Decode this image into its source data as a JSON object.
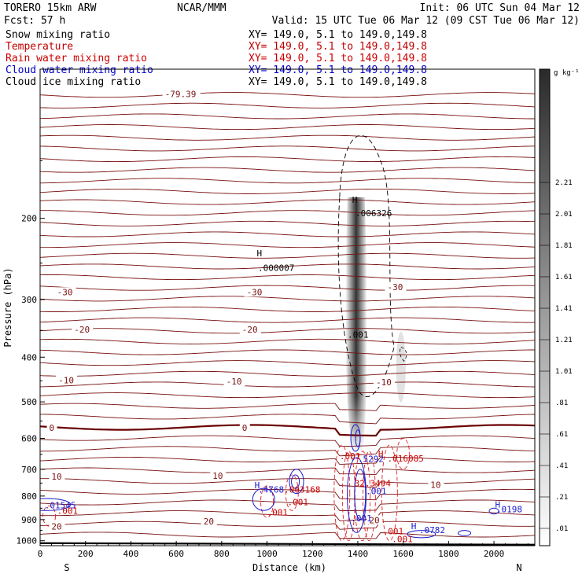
{
  "header": {
    "model": "TORERO  15km ARW",
    "org": "NCAR/MMM",
    "init": "Init: 06 UTC Sun 04 Mar 12",
    "fcst": "Fcst:   57 h",
    "valid": "Valid: 15 UTC Tue 06 Mar 12 (09 CST Tue 06 Mar 12)"
  },
  "fields": [
    {
      "name": "Snow mixing ratio",
      "xy": "XY= 149.0,  5.1 to 149.0,149.8",
      "color": "#000000"
    },
    {
      "name": "Temperature",
      "xy": "XY= 149.0,  5.1 to 149.0,149.8",
      "color": "#c00000"
    },
    {
      "name": "Rain water mixing ratio",
      "xy": "XY= 149.0,  5.1 to 149.0,149.8",
      "color": "#d00000"
    },
    {
      "name": "Cloud water mixing ratio",
      "xy": "XY= 149.0,  5.1 to 149.0,149.8",
      "color": "#0000cc"
    },
    {
      "name": "Cloud ice mixing ratio",
      "xy": "XY= 149.0,  5.1 to 149.0,149.8",
      "color": "#000000"
    }
  ],
  "colors": {
    "temperature": "#7a1010",
    "freezing": "#6a0000",
    "rain": "#dd2222",
    "cloud_water": "#1a1ad0",
    "cloud_ice": "#000000",
    "ground": "#000000"
  },
  "chart_data": {
    "type": "contour",
    "xlabel": "Distance (km)",
    "ylabel": "Pressure (hPa)",
    "xlim": [
      0,
      2180
    ],
    "ylim": [
      1025,
      95
    ],
    "y_scale": "log",
    "xticks": [
      0,
      200,
      400,
      600,
      800,
      1000,
      1200,
      1400,
      1600,
      1800,
      2000
    ],
    "yticks": [
      200,
      300,
      400,
      500,
      600,
      700,
      800,
      900,
      1000
    ],
    "x_left_label": "S",
    "x_right_label": "N",
    "temperature_isotherms": [
      {
        "label": "-79.39",
        "x": 550,
        "p": 108
      },
      {
        "label": "-30",
        "x": 75,
        "p": 290
      },
      {
        "label": "-30",
        "x": 910,
        "p": 290
      },
      {
        "label": "-30",
        "x": 1530,
        "p": 283
      },
      {
        "label": "-20",
        "x": 150,
        "p": 350
      },
      {
        "label": "-20",
        "x": 890,
        "p": 350
      },
      {
        "label": "-10",
        "x": 80,
        "p": 450
      },
      {
        "label": "-10",
        "x": 820,
        "p": 453
      },
      {
        "label": "-10",
        "x": 1480,
        "p": 455
      },
      {
        "label": "0",
        "x": 40,
        "p": 571
      },
      {
        "label": "0",
        "x": 890,
        "p": 571
      },
      {
        "label": "10",
        "x": 50,
        "p": 729
      },
      {
        "label": "10",
        "x": 760,
        "p": 726
      },
      {
        "label": "10",
        "x": 1720,
        "p": 759
      },
      {
        "label": "20",
        "x": 50,
        "p": 935
      },
      {
        "label": "20",
        "x": 720,
        "p": 911
      },
      {
        "label": "20",
        "x": 1450,
        "p": 905
      }
    ],
    "maxima_labels": [
      {
        "field": "cloud_ice",
        "label": ".000007",
        "x": 960,
        "p": 260
      },
      {
        "field": "snow",
        "label": ".006326",
        "x": 1390,
        "p": 198
      },
      {
        "field": "snow",
        "label": ".001",
        "x": 1355,
        "p": 363
      },
      {
        "field": "cloud_water",
        "label": ".5292",
        "x": 1400,
        "p": 675
      },
      {
        "field": "rain",
        "label": ".016085",
        "x": 1530,
        "p": 674
      },
      {
        "field": "rain",
        "label": ".001",
        "x": 1320,
        "p": 666
      },
      {
        "field": "rain",
        "label": "32.3494",
        "x": 1385,
        "p": 762
      },
      {
        "field": "cloud_water",
        "label": ".4768",
        "x": 960,
        "p": 786
      },
      {
        "field": "rain",
        "label": ".003168",
        "x": 1075,
        "p": 786
      },
      {
        "field": "rain",
        "label": ".001",
        "x": 1090,
        "p": 837
      },
      {
        "field": "rain",
        "label": ".001",
        "x": 1000,
        "p": 881
      },
      {
        "field": "cloud_water",
        "label": ".001",
        "x": 1435,
        "p": 793
      },
      {
        "field": "cloud_water",
        "label": ".01545",
        "x": 20,
        "p": 851
      },
      {
        "field": "rain",
        "label": ".001",
        "x": 75,
        "p": 874
      },
      {
        "field": "cloud_water",
        "label": ".001",
        "x": 1370,
        "p": 908
      },
      {
        "field": "rain",
        "label": ".001",
        "x": 1510,
        "p": 968
      },
      {
        "field": "rain",
        "label": ".001",
        "x": 1550,
        "p": 1008
      },
      {
        "field": "cloud_water",
        "label": ".0782",
        "x": 1670,
        "p": 962
      },
      {
        "field": "cloud_water",
        "label": ".0198",
        "x": 2010,
        "p": 868
      }
    ],
    "highs": [
      {
        "x": 955,
        "p": 242,
        "color": "black"
      },
      {
        "x": 1375,
        "p": 185,
        "color": "black"
      },
      {
        "x": 1490,
        "p": 658,
        "color": "red"
      },
      {
        "x": 945,
        "p": 770,
        "color": "blue"
      },
      {
        "x": 1635,
        "p": 943,
        "color": "blue"
      },
      {
        "x": 2005,
        "p": 848,
        "color": "blue"
      }
    ],
    "colorbar": {
      "unit": "g kg⁻¹",
      "ticks": [
        ".01",
        ".21",
        ".41",
        ".61",
        ".81",
        "1.01",
        "1.21",
        "1.41",
        "1.61",
        "1.81",
        "2.01",
        "2.21"
      ]
    }
  }
}
